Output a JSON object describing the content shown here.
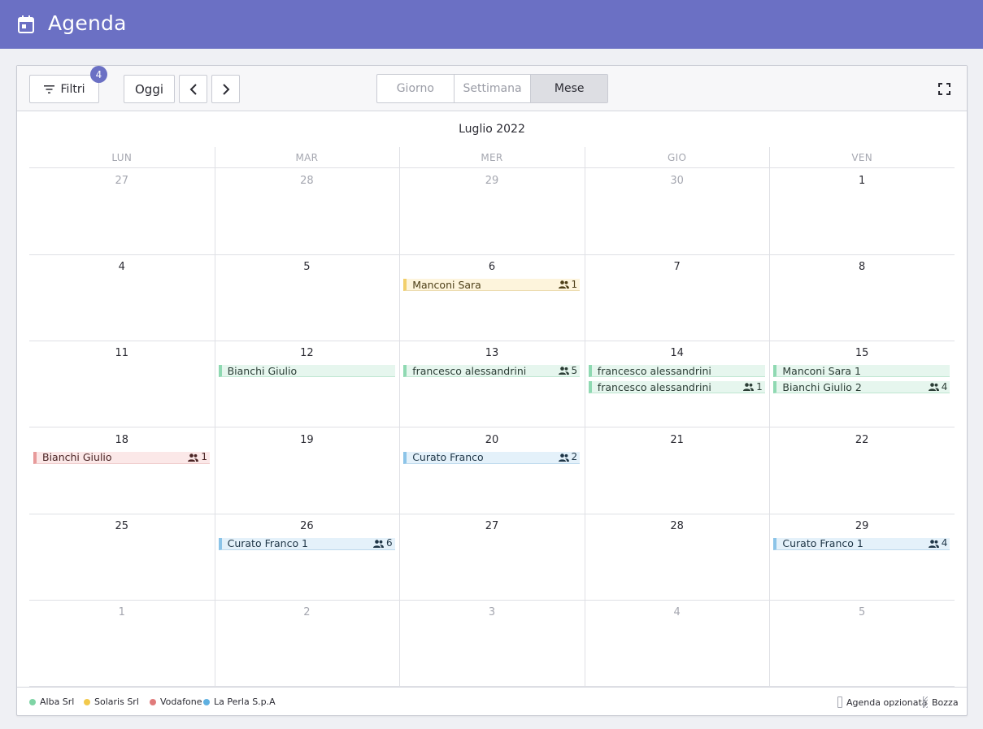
{
  "header": {
    "title": "Agenda",
    "icon": "calendar-icon"
  },
  "toolbar": {
    "filters_label": "Filtri",
    "filters_count": "4",
    "today_label": "Oggi",
    "views": [
      "Giorno",
      "Settimana",
      "Mese"
    ],
    "active_view": "Mese"
  },
  "calendar": {
    "month_title": "Luglio 2022",
    "weekdays": [
      "LUN",
      "MAR",
      "MER",
      "GIO",
      "VEN"
    ],
    "weeks": [
      {
        "days": [
          {
            "num": "27",
            "muted": true,
            "events": []
          },
          {
            "num": "28",
            "muted": true,
            "events": []
          },
          {
            "num": "29",
            "muted": true,
            "events": []
          },
          {
            "num": "30",
            "muted": true,
            "events": []
          },
          {
            "num": "1",
            "muted": false,
            "events": []
          }
        ]
      },
      {
        "days": [
          {
            "num": "4",
            "muted": false,
            "events": []
          },
          {
            "num": "5",
            "muted": false,
            "events": []
          },
          {
            "num": "6",
            "muted": false,
            "events": [
              {
                "label": "Manconi Sara",
                "count": "1",
                "color": "yellow"
              }
            ]
          },
          {
            "num": "7",
            "muted": false,
            "events": []
          },
          {
            "num": "8",
            "muted": false,
            "events": []
          }
        ]
      },
      {
        "days": [
          {
            "num": "11",
            "muted": false,
            "events": []
          },
          {
            "num": "12",
            "muted": false,
            "events": [
              {
                "label": "Bianchi Giulio",
                "count": "",
                "color": "green"
              }
            ]
          },
          {
            "num": "13",
            "muted": false,
            "events": [
              {
                "label": "francesco alessandrini",
                "count": "5",
                "color": "green"
              }
            ]
          },
          {
            "num": "14",
            "muted": false,
            "events": [
              {
                "label": "francesco alessandrini",
                "count": "",
                "color": "green"
              },
              {
                "label": "francesco alessandrini",
                "count": "1",
                "color": "green"
              }
            ]
          },
          {
            "num": "15",
            "muted": false,
            "events": [
              {
                "label": "Manconi Sara 1",
                "count": "",
                "color": "green"
              },
              {
                "label": "Bianchi Giulio 2",
                "count": "4",
                "color": "green"
              }
            ]
          }
        ]
      },
      {
        "days": [
          {
            "num": "18",
            "muted": false,
            "events": [
              {
                "label": "Bianchi Giulio",
                "count": "1",
                "color": "red"
              }
            ]
          },
          {
            "num": "19",
            "muted": false,
            "events": []
          },
          {
            "num": "20",
            "muted": false,
            "events": [
              {
                "label": "Curato Franco",
                "count": "2",
                "color": "blue"
              }
            ]
          },
          {
            "num": "21",
            "muted": false,
            "events": []
          },
          {
            "num": "22",
            "muted": false,
            "events": []
          }
        ]
      },
      {
        "days": [
          {
            "num": "25",
            "muted": false,
            "events": []
          },
          {
            "num": "26",
            "muted": false,
            "events": [
              {
                "label": "Curato Franco 1",
                "count": "6",
                "color": "blue"
              }
            ]
          },
          {
            "num": "27",
            "muted": false,
            "events": []
          },
          {
            "num": "28",
            "muted": false,
            "events": []
          },
          {
            "num": "29",
            "muted": false,
            "events": [
              {
                "label": "Curato Franco 1",
                "count": "4",
                "color": "blue"
              }
            ]
          }
        ]
      },
      {
        "days": [
          {
            "num": "1",
            "muted": true,
            "events": []
          },
          {
            "num": "2",
            "muted": true,
            "events": []
          },
          {
            "num": "3",
            "muted": true,
            "events": []
          },
          {
            "num": "4",
            "muted": true,
            "events": []
          },
          {
            "num": "5",
            "muted": true,
            "events": []
          }
        ]
      }
    ]
  },
  "legend": {
    "companies": [
      {
        "label": "Alba Srl",
        "color": "#7fd4a5"
      },
      {
        "label": "Solaris Srl",
        "color": "#f2c94c"
      },
      {
        "label": "Vodafone",
        "color": "#e07b7b"
      },
      {
        "label": "La Perla S.p.A",
        "color": "#5fb0e0"
      }
    ],
    "optioned_label": "Agenda opzionata",
    "draft_label": "Bozza"
  },
  "colors": {
    "accent": "#6b70c4"
  }
}
